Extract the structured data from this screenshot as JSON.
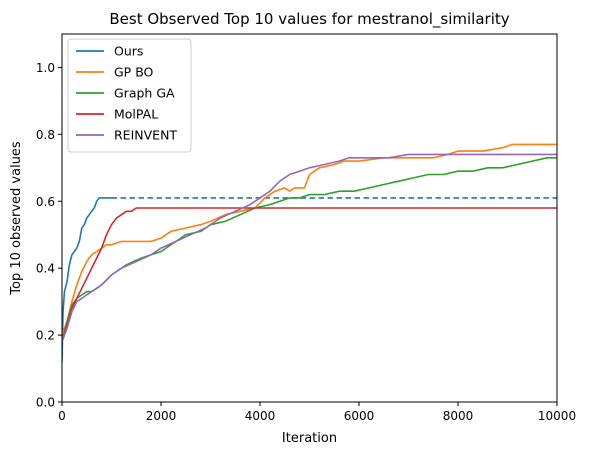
{
  "chart_data": {
    "type": "line",
    "title": "Best Observed Top 10 values for mestranol_similarity",
    "xlabel": "Iteration",
    "ylabel": "Top 10 observed values",
    "xlim": [
      0,
      10000
    ],
    "ylim": [
      0,
      1.1
    ],
    "xticks": [
      0,
      2000,
      4000,
      6000,
      8000,
      10000
    ],
    "xtick_labels": [
      "0",
      "2000",
      "4000",
      "6000",
      "8000",
      "10000"
    ],
    "yticks": [
      0.0,
      0.2,
      0.4,
      0.6,
      0.8,
      1.0
    ],
    "ytick_labels": [
      "0.0",
      "0.2",
      "0.4",
      "0.6",
      "0.8",
      "1.0"
    ],
    "grid": false,
    "legend_position": "top-left",
    "series": [
      {
        "name": "Ours",
        "color": "#1f77b4",
        "x": [
          0,
          20,
          50,
          100,
          150,
          200,
          250,
          300,
          350,
          400,
          450,
          500,
          550,
          600,
          650,
          700,
          750,
          800,
          900,
          1000
        ],
        "y": [
          0.12,
          0.27,
          0.33,
          0.36,
          0.41,
          0.44,
          0.45,
          0.46,
          0.48,
          0.52,
          0.53,
          0.55,
          0.56,
          0.57,
          0.58,
          0.6,
          0.61,
          0.61,
          0.61,
          0.61
        ],
        "extension": {
          "style": "dashed",
          "x": [
            1000,
            10000
          ],
          "y": [
            0.61,
            0.61
          ]
        }
      },
      {
        "name": "GP BO",
        "color": "#ff7f0e",
        "x": [
          0,
          100,
          200,
          300,
          400,
          500,
          600,
          700,
          800,
          900,
          1000,
          1200,
          1500,
          1800,
          2000,
          2200,
          2500,
          2800,
          3000,
          3300,
          3600,
          3900,
          4100,
          4300,
          4500,
          4600,
          4700,
          4900,
          5000,
          5200,
          5500,
          5700,
          6000,
          6500,
          7000,
          7500,
          7800,
          8000,
          8500,
          8900,
          9100,
          9500,
          10000
        ],
        "y": [
          0.2,
          0.24,
          0.3,
          0.35,
          0.39,
          0.42,
          0.44,
          0.45,
          0.46,
          0.47,
          0.47,
          0.48,
          0.48,
          0.48,
          0.49,
          0.51,
          0.52,
          0.53,
          0.54,
          0.56,
          0.57,
          0.58,
          0.61,
          0.63,
          0.64,
          0.63,
          0.64,
          0.64,
          0.68,
          0.7,
          0.71,
          0.72,
          0.72,
          0.73,
          0.73,
          0.73,
          0.74,
          0.75,
          0.75,
          0.76,
          0.77,
          0.77,
          0.77
        ]
      },
      {
        "name": "Graph GA",
        "color": "#2ca02c",
        "x": [
          0,
          100,
          200,
          300,
          400,
          500,
          600,
          700,
          800,
          1000,
          1300,
          1600,
          1800,
          2000,
          2300,
          2500,
          2800,
          3000,
          3300,
          3600,
          3900,
          4200,
          4400,
          4600,
          4800,
          5000,
          5300,
          5600,
          5900,
          6200,
          6500,
          6800,
          7100,
          7400,
          7700,
          8000,
          8300,
          8600,
          8900,
          9200,
          9500,
          9800,
          10000
        ],
        "y": [
          0.18,
          0.24,
          0.29,
          0.31,
          0.32,
          0.33,
          0.33,
          0.34,
          0.35,
          0.38,
          0.41,
          0.43,
          0.44,
          0.45,
          0.48,
          0.5,
          0.51,
          0.53,
          0.54,
          0.56,
          0.58,
          0.59,
          0.6,
          0.61,
          0.61,
          0.62,
          0.62,
          0.63,
          0.63,
          0.64,
          0.65,
          0.66,
          0.67,
          0.68,
          0.68,
          0.69,
          0.69,
          0.7,
          0.7,
          0.71,
          0.72,
          0.73,
          0.73
        ]
      },
      {
        "name": "MolPAL",
        "color": "#d62728",
        "x": [
          0,
          100,
          200,
          300,
          400,
          500,
          600,
          700,
          800,
          900,
          1000,
          1100,
          1200,
          1300,
          1400,
          1500,
          1600,
          2000,
          4000,
          6000,
          8000,
          10000
        ],
        "y": [
          0.18,
          0.23,
          0.28,
          0.31,
          0.34,
          0.37,
          0.4,
          0.43,
          0.46,
          0.5,
          0.53,
          0.55,
          0.56,
          0.57,
          0.57,
          0.58,
          0.58,
          0.58,
          0.58,
          0.58,
          0.58,
          0.58
        ]
      },
      {
        "name": "REINVENT",
        "color": "#9467bd",
        "x": [
          0,
          100,
          200,
          300,
          400,
          500,
          600,
          700,
          800,
          1000,
          1200,
          1500,
          1800,
          2000,
          2300,
          2600,
          2900,
          3200,
          3500,
          3800,
          4000,
          4200,
          4400,
          4600,
          4800,
          5000,
          5300,
          5600,
          5800,
          6200,
          6600,
          7000,
          7500,
          8000,
          8500,
          9000,
          9500,
          10000
        ],
        "y": [
          0.18,
          0.22,
          0.27,
          0.3,
          0.31,
          0.32,
          0.33,
          0.34,
          0.35,
          0.38,
          0.4,
          0.42,
          0.44,
          0.46,
          0.48,
          0.5,
          0.52,
          0.55,
          0.57,
          0.59,
          0.61,
          0.63,
          0.66,
          0.68,
          0.69,
          0.7,
          0.71,
          0.72,
          0.73,
          0.73,
          0.73,
          0.74,
          0.74,
          0.74,
          0.74,
          0.74,
          0.74,
          0.74
        ]
      }
    ]
  }
}
